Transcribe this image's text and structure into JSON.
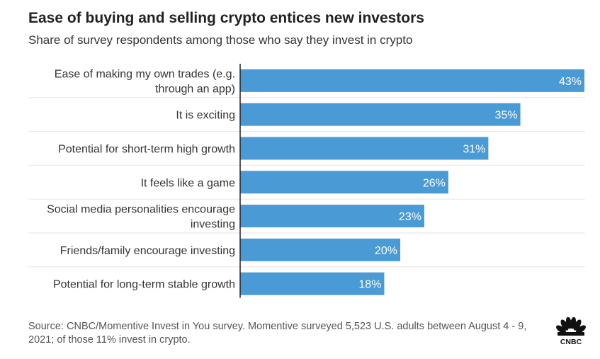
{
  "title": "Ease of buying and selling crypto entices new investors",
  "subtitle": "Share of survey respondents among those who say they invest in crypto",
  "source": "Source: CNBC/Momentive Invest in You survey. Momentive surveyed 5,523 U.S. adults between August 4 - 9, 2021; of those 11% invest in crypto.",
  "logo_text": "CNBC",
  "colors": {
    "bar": "#4a9ad6",
    "bar_label": "#ffffff",
    "grid": "#e6e6e6",
    "axis": "#222222"
  },
  "chart_data": {
    "type": "bar",
    "orientation": "horizontal",
    "title": "Ease of buying and selling crypto entices new investors",
    "subtitle": "Share of survey respondents among those who say they invest in crypto",
    "categories": [
      [
        "Ease of making my own trades (e.g.",
        "through an app)"
      ],
      [
        "It is exciting"
      ],
      [
        "Potential for short-term high growth"
      ],
      [
        "It feels like a game"
      ],
      [
        "Social media personalities encourage",
        "investing"
      ],
      [
        "Friends/family encourage investing"
      ],
      [
        "Potential for long-term stable growth"
      ]
    ],
    "values": [
      43,
      35,
      31,
      26,
      23,
      20,
      18
    ],
    "value_labels": [
      "43%",
      "35%",
      "31%",
      "26%",
      "23%",
      "20%",
      "18%"
    ],
    "unit": "%",
    "xlim": [
      0,
      43
    ],
    "grid": false,
    "legend": "none"
  }
}
